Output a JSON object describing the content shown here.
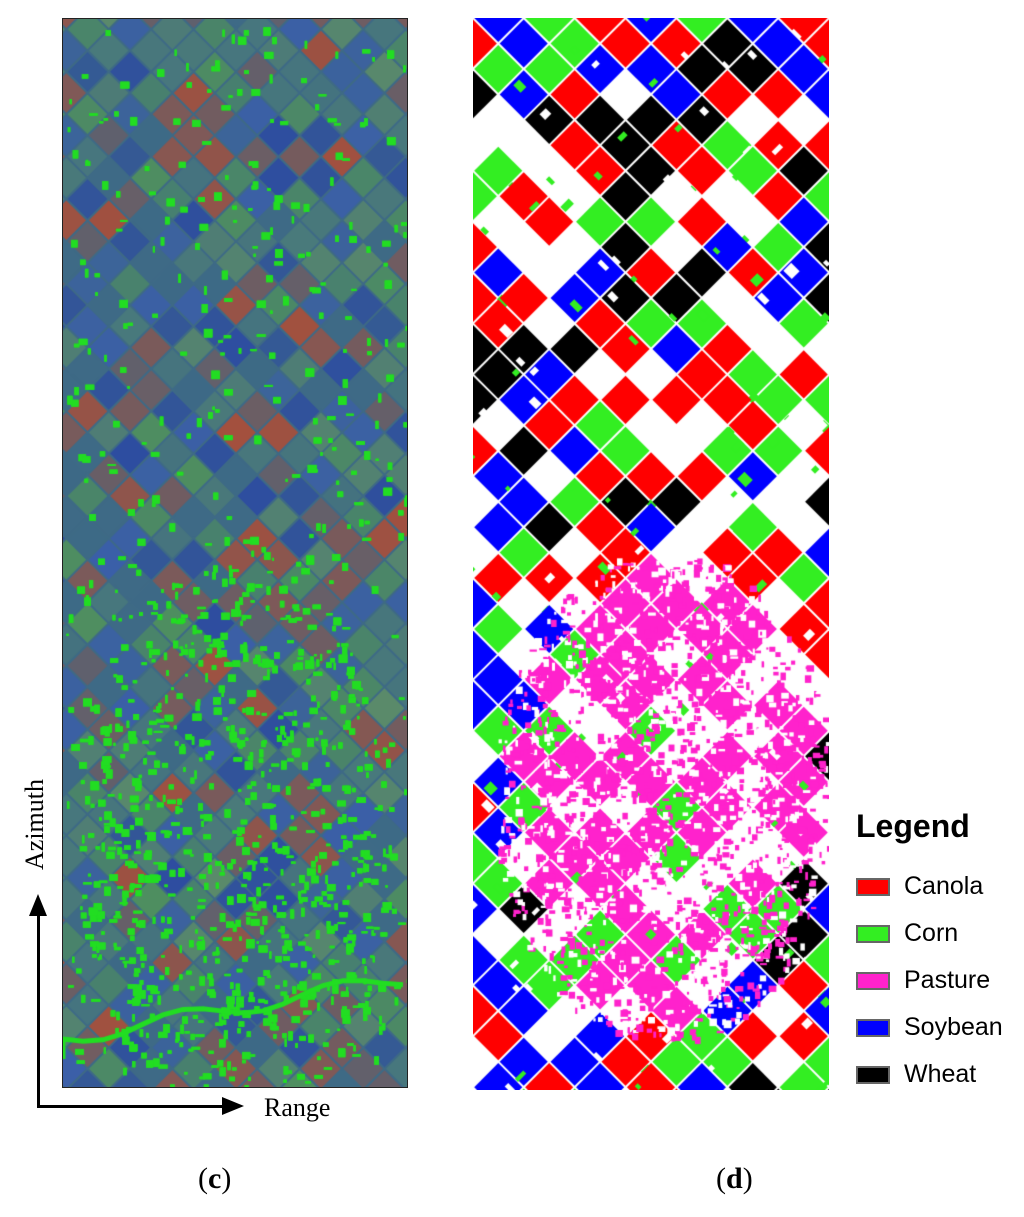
{
  "panel_c": {
    "caption_letter": "c"
  },
  "panel_d": {
    "caption_letter": "d"
  },
  "axes": {
    "azimuth_label": "Azimuth",
    "range_label": "Range"
  },
  "legend": {
    "title": "Legend",
    "items": [
      {
        "label": "Canola",
        "color": "#ff0000"
      },
      {
        "label": "Corn",
        "color": "#33ee22"
      },
      {
        "label": "Pasture",
        "color": "#ff22cc"
      },
      {
        "label": "Soybean",
        "color": "#0000ff"
      },
      {
        "label": "Wheat",
        "color": "#000000"
      }
    ]
  },
  "colors": {
    "rgb_base": "#3e6a86",
    "rgb_green": "#22dd22",
    "rgb_red": "#b04a3a",
    "rgb_blue": "#2a3fb8",
    "unclassified": "#ffffff"
  }
}
